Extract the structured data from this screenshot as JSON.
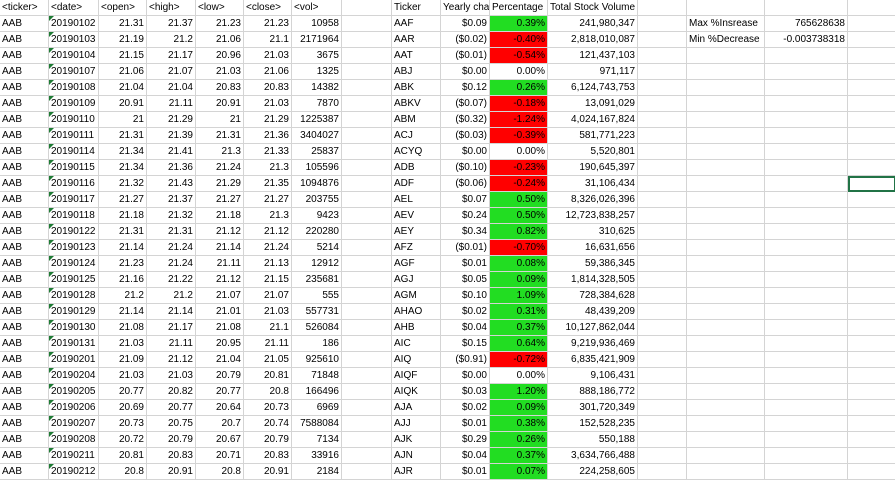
{
  "headers": {
    "ticker": "<ticker>",
    "date": "<date>",
    "open": "<open>",
    "high": "<high>",
    "low": "<low>",
    "close": "<close>",
    "vol": "<vol>",
    "summary_ticker": "Ticker",
    "yearly_change": "Yearly cha",
    "percentage": "Percentage",
    "total_volume": "Total Stock Volume"
  },
  "stats": {
    "max_label": "Max %Insrease",
    "max_value": "765628638",
    "min_label": "Min %Decrease",
    "min_value": "-0.003738318"
  },
  "raw_rows": [
    [
      "AAB",
      "20190102",
      "21.31",
      "21.37",
      "21.23",
      "21.23",
      "10958"
    ],
    [
      "AAB",
      "20190103",
      "21.19",
      "21.2",
      "21.06",
      "21.1",
      "2171964"
    ],
    [
      "AAB",
      "20190104",
      "21.15",
      "21.17",
      "20.96",
      "21.03",
      "3675"
    ],
    [
      "AAB",
      "20190107",
      "21.06",
      "21.07",
      "21.03",
      "21.06",
      "1325"
    ],
    [
      "AAB",
      "20190108",
      "21.04",
      "21.04",
      "20.83",
      "20.83",
      "14382"
    ],
    [
      "AAB",
      "20190109",
      "20.91",
      "21.11",
      "20.91",
      "21.03",
      "7870"
    ],
    [
      "AAB",
      "20190110",
      "21",
      "21.29",
      "21",
      "21.29",
      "1225387"
    ],
    [
      "AAB",
      "20190111",
      "21.31",
      "21.39",
      "21.31",
      "21.36",
      "3404027"
    ],
    [
      "AAB",
      "20190114",
      "21.34",
      "21.41",
      "21.3",
      "21.33",
      "25837"
    ],
    [
      "AAB",
      "20190115",
      "21.34",
      "21.36",
      "21.24",
      "21.3",
      "105596"
    ],
    [
      "AAB",
      "20190116",
      "21.32",
      "21.43",
      "21.29",
      "21.35",
      "1094876"
    ],
    [
      "AAB",
      "20190117",
      "21.27",
      "21.37",
      "21.27",
      "21.27",
      "203755"
    ],
    [
      "AAB",
      "20190118",
      "21.18",
      "21.32",
      "21.18",
      "21.3",
      "9423"
    ],
    [
      "AAB",
      "20190122",
      "21.31",
      "21.31",
      "21.12",
      "21.12",
      "220280"
    ],
    [
      "AAB",
      "20190123",
      "21.14",
      "21.24",
      "21.14",
      "21.24",
      "5214"
    ],
    [
      "AAB",
      "20190124",
      "21.23",
      "21.24",
      "21.11",
      "21.13",
      "12912"
    ],
    [
      "AAB",
      "20190125",
      "21.16",
      "21.22",
      "21.12",
      "21.15",
      "235681"
    ],
    [
      "AAB",
      "20190128",
      "21.2",
      "21.2",
      "21.07",
      "21.07",
      "555"
    ],
    [
      "AAB",
      "20190129",
      "21.14",
      "21.14",
      "21.01",
      "21.03",
      "557731"
    ],
    [
      "AAB",
      "20190130",
      "21.08",
      "21.17",
      "21.08",
      "21.1",
      "526084"
    ],
    [
      "AAB",
      "20190131",
      "21.03",
      "21.11",
      "20.95",
      "21.11",
      "186"
    ],
    [
      "AAB",
      "20190201",
      "21.09",
      "21.12",
      "21.04",
      "21.05",
      "925610"
    ],
    [
      "AAB",
      "20190204",
      "21.03",
      "21.03",
      "20.79",
      "20.81",
      "71848"
    ],
    [
      "AAB",
      "20190205",
      "20.77",
      "20.82",
      "20.77",
      "20.8",
      "166496"
    ],
    [
      "AAB",
      "20190206",
      "20.69",
      "20.77",
      "20.64",
      "20.73",
      "6969"
    ],
    [
      "AAB",
      "20190207",
      "20.73",
      "20.75",
      "20.7",
      "20.74",
      "7588084"
    ],
    [
      "AAB",
      "20190208",
      "20.72",
      "20.79",
      "20.67",
      "20.79",
      "7134"
    ],
    [
      "AAB",
      "20190211",
      "20.81",
      "20.83",
      "20.71",
      "20.83",
      "33916"
    ],
    [
      "AAB",
      "20190212",
      "20.8",
      "20.91",
      "20.8",
      "20.91",
      "2184"
    ]
  ],
  "summary_rows": [
    [
      "AAF",
      "$0.09",
      "0.39%",
      "241,980,347",
      "green"
    ],
    [
      "AAR",
      "($0.02)",
      "-0.40%",
      "2,818,010,087",
      "red"
    ],
    [
      "AAT",
      "($0.01)",
      "-0.54%",
      "121,437,103",
      "red"
    ],
    [
      "ABJ",
      "$0.00",
      "0.00%",
      "971,117",
      "none"
    ],
    [
      "ABK",
      "$0.12",
      "0.26%",
      "6,124,743,753",
      "green"
    ],
    [
      "ABKV",
      "($0.07)",
      "-0.18%",
      "13,091,029",
      "red"
    ],
    [
      "ABM",
      "($0.32)",
      "-1.24%",
      "4,024,167,824",
      "red"
    ],
    [
      "ACJ",
      "($0.03)",
      "-0.39%",
      "581,771,223",
      "red"
    ],
    [
      "ACYQ",
      "$0.00",
      "0.00%",
      "5,520,801",
      "none"
    ],
    [
      "ADB",
      "($0.10)",
      "-0.23%",
      "190,645,397",
      "red"
    ],
    [
      "ADF",
      "($0.06)",
      "-0.24%",
      "31,106,434",
      "red"
    ],
    [
      "AEL",
      "$0.07",
      "0.50%",
      "8,326,026,396",
      "green"
    ],
    [
      "AEV",
      "$0.24",
      "0.50%",
      "12,723,838,257",
      "green"
    ],
    [
      "AEY",
      "$0.34",
      "0.82%",
      "310,625",
      "green"
    ],
    [
      "AFZ",
      "($0.01)",
      "-0.70%",
      "16,631,656",
      "red"
    ],
    [
      "AGF",
      "$0.01",
      "0.08%",
      "59,386,345",
      "green"
    ],
    [
      "AGJ",
      "$0.05",
      "0.09%",
      "1,814,328,505",
      "green"
    ],
    [
      "AGM",
      "$0.10",
      "1.09%",
      "728,384,628",
      "green"
    ],
    [
      "AHAO",
      "$0.02",
      "0.31%",
      "48,439,209",
      "green"
    ],
    [
      "AHB",
      "$0.04",
      "0.37%",
      "10,127,862,044",
      "green"
    ],
    [
      "AIC",
      "$0.15",
      "0.64%",
      "9,219,936,469",
      "green"
    ],
    [
      "AIQ",
      "($0.91)",
      "-0.72%",
      "6,835,421,909",
      "red"
    ],
    [
      "AIQF",
      "$0.00",
      "0.00%",
      "9,106,431",
      "none"
    ],
    [
      "AIQK",
      "$0.03",
      "1.20%",
      "888,186,772",
      "green"
    ],
    [
      "AJA",
      "$0.02",
      "0.09%",
      "301,720,349",
      "green"
    ],
    [
      "AJJ",
      "$0.01",
      "0.38%",
      "152,528,235",
      "green"
    ],
    [
      "AJK",
      "$0.29",
      "0.26%",
      "550,188",
      "green"
    ],
    [
      "AJN",
      "$0.04",
      "0.37%",
      "3,634,766,488",
      "green"
    ],
    [
      "AJR",
      "$0.01",
      "0.07%",
      "224,258,605",
      "green"
    ]
  ]
}
